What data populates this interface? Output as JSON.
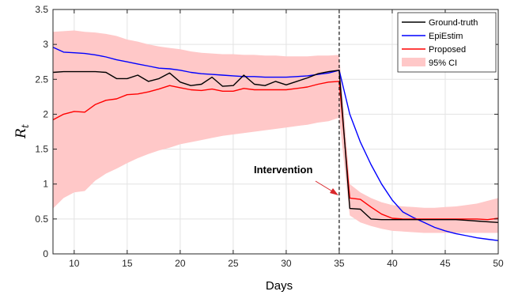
{
  "chart_data": {
    "type": "line",
    "title": "",
    "xlabel": "Days",
    "ylabel": {
      "base": "R",
      "subscript": "t"
    },
    "xlim": [
      8,
      50
    ],
    "ylim": [
      0,
      3.5
    ],
    "xticks": [
      10,
      15,
      20,
      25,
      30,
      35,
      40,
      45,
      50
    ],
    "yticks": [
      0,
      0.5,
      1,
      1.5,
      2,
      2.5,
      3,
      3.5
    ],
    "xtick_labels": [
      "10",
      "15",
      "20",
      "25",
      "30",
      "35",
      "40",
      "45",
      "50"
    ],
    "ytick_labels": [
      "0",
      "0.5",
      "1",
      "1.5",
      "2",
      "2.5",
      "3",
      "3.5"
    ],
    "grid": true,
    "legend_position": "top-right",
    "vertical_line": {
      "x": 35,
      "style": "dashed",
      "color": "#000000"
    },
    "annotation": {
      "text": "Intervention",
      "x": 34.3,
      "y": 0.82
    },
    "ci_band": {
      "name": "95% CI",
      "color": "#ffc8c8",
      "x": [
        8,
        9,
        10,
        11,
        12,
        13,
        14,
        15,
        16,
        17,
        18,
        19,
        20,
        21,
        22,
        23,
        24,
        25,
        26,
        27,
        28,
        29,
        30,
        31,
        32,
        33,
        34,
        35,
        36,
        37,
        38,
        39,
        40,
        41,
        42,
        43,
        44,
        45,
        46,
        47,
        48,
        49,
        50
      ],
      "upper": [
        3.18,
        3.19,
        3.2,
        3.18,
        3.17,
        3.15,
        3.12,
        3.07,
        3.04,
        3.0,
        2.97,
        2.95,
        2.93,
        2.9,
        2.88,
        2.87,
        2.86,
        2.86,
        2.85,
        2.85,
        2.84,
        2.84,
        2.83,
        2.83,
        2.83,
        2.84,
        2.84,
        2.85,
        1.0,
        0.88,
        0.8,
        0.74,
        0.7,
        0.68,
        0.67,
        0.66,
        0.66,
        0.67,
        0.68,
        0.7,
        0.72,
        0.76,
        0.8
      ],
      "lower": [
        0.65,
        0.8,
        0.88,
        0.9,
        1.05,
        1.15,
        1.22,
        1.3,
        1.37,
        1.43,
        1.48,
        1.52,
        1.57,
        1.6,
        1.63,
        1.66,
        1.69,
        1.71,
        1.73,
        1.75,
        1.77,
        1.79,
        1.81,
        1.83,
        1.85,
        1.88,
        1.9,
        1.95,
        0.55,
        0.45,
        0.4,
        0.36,
        0.33,
        0.32,
        0.31,
        0.3,
        0.3,
        0.3,
        0.3,
        0.3,
        0.3,
        0.3,
        0.3
      ]
    },
    "series": [
      {
        "name": "Ground-truth",
        "color": "#000000",
        "x": [
          8,
          9,
          10,
          11,
          12,
          13,
          14,
          15,
          16,
          17,
          18,
          19,
          20,
          21,
          22,
          23,
          24,
          25,
          26,
          27,
          28,
          29,
          30,
          31,
          32,
          33,
          34,
          35,
          36,
          37,
          38,
          39,
          40,
          41,
          42,
          43,
          44,
          45,
          46,
          47,
          48,
          49,
          50
        ],
        "y": [
          2.6,
          2.61,
          2.61,
          2.61,
          2.61,
          2.6,
          2.51,
          2.51,
          2.56,
          2.47,
          2.51,
          2.59,
          2.46,
          2.41,
          2.43,
          2.53,
          2.4,
          2.41,
          2.56,
          2.43,
          2.41,
          2.47,
          2.42,
          2.47,
          2.52,
          2.58,
          2.61,
          2.63,
          0.65,
          0.64,
          0.5,
          0.49,
          0.49,
          0.49,
          0.49,
          0.49,
          0.49,
          0.49,
          0.49,
          0.48,
          0.47,
          0.46,
          0.45
        ]
      },
      {
        "name": "EpiEstim",
        "color": "#0000ff",
        "x": [
          8,
          9,
          10,
          11,
          12,
          13,
          14,
          15,
          16,
          17,
          18,
          19,
          20,
          21,
          22,
          23,
          24,
          25,
          26,
          27,
          28,
          29,
          30,
          31,
          32,
          33,
          34,
          35,
          36,
          37,
          38,
          39,
          40,
          41,
          42,
          43,
          44,
          45,
          46,
          47,
          48,
          49,
          50
        ],
        "y": [
          2.96,
          2.89,
          2.88,
          2.87,
          2.85,
          2.82,
          2.78,
          2.75,
          2.72,
          2.69,
          2.66,
          2.65,
          2.63,
          2.6,
          2.58,
          2.57,
          2.56,
          2.55,
          2.54,
          2.54,
          2.53,
          2.53,
          2.53,
          2.54,
          2.55,
          2.57,
          2.59,
          2.63,
          2.0,
          1.6,
          1.28,
          1.0,
          0.77,
          0.6,
          0.52,
          0.45,
          0.38,
          0.33,
          0.29,
          0.26,
          0.23,
          0.21,
          0.19
        ]
      },
      {
        "name": "Proposed",
        "color": "#ff0000",
        "x": [
          8,
          9,
          10,
          11,
          12,
          13,
          14,
          15,
          16,
          17,
          18,
          19,
          20,
          21,
          22,
          23,
          24,
          25,
          26,
          27,
          28,
          29,
          30,
          31,
          32,
          33,
          34,
          35,
          36,
          37,
          38,
          39,
          40,
          41,
          42,
          43,
          44,
          45,
          46,
          47,
          48,
          49,
          50
        ],
        "y": [
          1.92,
          2.0,
          2.04,
          2.03,
          2.14,
          2.2,
          2.22,
          2.28,
          2.29,
          2.32,
          2.36,
          2.41,
          2.38,
          2.35,
          2.34,
          2.36,
          2.33,
          2.33,
          2.37,
          2.35,
          2.35,
          2.35,
          2.35,
          2.37,
          2.39,
          2.43,
          2.46,
          2.47,
          0.8,
          0.78,
          0.67,
          0.57,
          0.51,
          0.5,
          0.5,
          0.5,
          0.5,
          0.5,
          0.5,
          0.5,
          0.5,
          0.49,
          0.51
        ]
      }
    ]
  }
}
